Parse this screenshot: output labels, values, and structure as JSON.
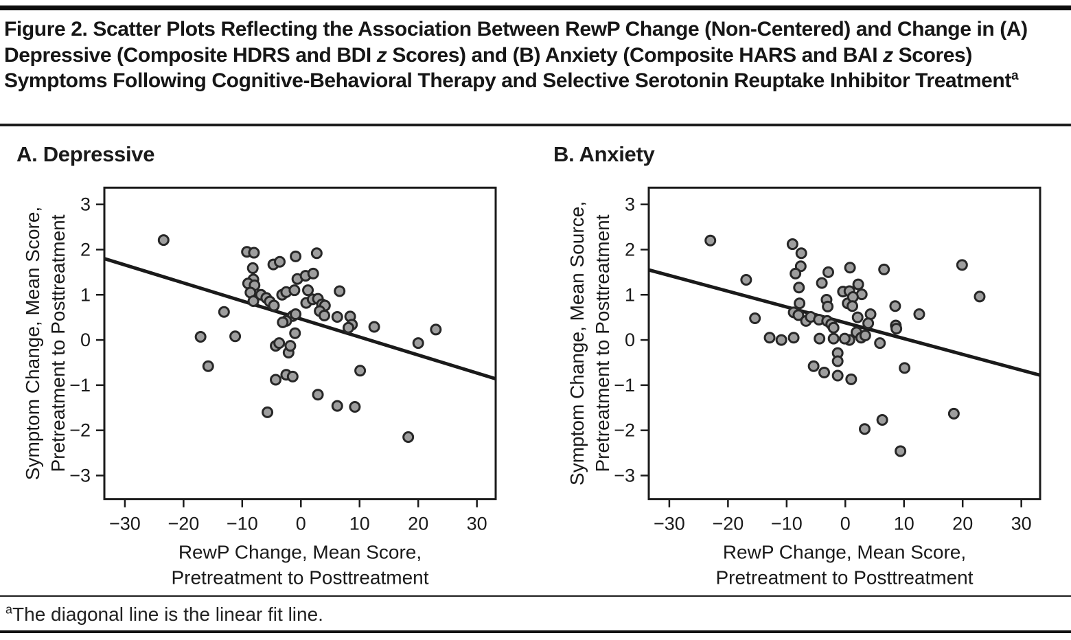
{
  "header": {
    "title_segments": [
      {
        "t": "Figure 2. Scatter Plots Reflecting the Association Between RewP Change (Non-Centered) and Change in (A) Depressive (Composite HDRS and BDI "
      },
      {
        "t": "z",
        "i": true
      },
      {
        "t": " Scores) and (B) Anxiety (Composite HARS and BAI "
      },
      {
        "t": "z",
        "i": true
      },
      {
        "t": " Scores) Symptoms Following Cognitive-Behavioral Therapy and Selective Serotonin Reuptake Inhibitor Treatment"
      },
      {
        "t": "a",
        "sup": true
      }
    ]
  },
  "footnote": {
    "segments": [
      {
        "t": "a",
        "sup": true
      },
      {
        "t": "The diagonal line is the linear fit line."
      }
    ]
  },
  "chart_data": [
    {
      "type": "scatter",
      "panel_label": "A. Depressive",
      "xlabel_lines": [
        "RewP Change, Mean Score,",
        "Pretreatment to Posttreatment"
      ],
      "ylabel_lines": [
        "Symptom Change, Mean Score,",
        "Pretreatment to Posttreatment"
      ],
      "xlim": [
        -33.5,
        33.2
      ],
      "ylim": [
        -3.52,
        3.37
      ],
      "xticks": [
        -30,
        -20,
        -10,
        0,
        10,
        20,
        30
      ],
      "yticks": [
        3,
        2,
        1,
        0,
        -1,
        -2,
        -3
      ],
      "grid": false,
      "legend": "none",
      "fit_line": {
        "x1": -33.5,
        "y1": 1.8,
        "x2": 33.2,
        "y2": -0.86
      },
      "colors": {
        "marker_fill": "#9e9e9e",
        "marker_stroke": "#272727",
        "line": "#1a1a1a",
        "axis": "#1a1a1a"
      },
      "points": [
        [
          -23.4,
          2.21
        ],
        [
          -9.2,
          1.95
        ],
        [
          -8.0,
          1.93
        ],
        [
          -8.2,
          1.59
        ],
        [
          -4.7,
          1.67
        ],
        [
          -3.6,
          1.73
        ],
        [
          -0.9,
          1.85
        ],
        [
          2.7,
          1.92
        ],
        [
          -0.6,
          1.35
        ],
        [
          0.8,
          1.42
        ],
        [
          2.1,
          1.47
        ],
        [
          -8.1,
          1.34
        ],
        [
          -9.0,
          1.25
        ],
        [
          -7.9,
          1.21
        ],
        [
          -8.6,
          1.05
        ],
        [
          -8.1,
          0.86
        ],
        [
          -6.8,
          1.0
        ],
        [
          -5.9,
          0.93
        ],
        [
          -5.3,
          0.85
        ],
        [
          -4.6,
          0.76
        ],
        [
          -3.2,
          1.0
        ],
        [
          -2.5,
          1.06
        ],
        [
          -1.1,
          1.1
        ],
        [
          1.2,
          1.1
        ],
        [
          6.6,
          1.08
        ],
        [
          0.9,
          0.82
        ],
        [
          2.0,
          0.9
        ],
        [
          2.9,
          0.91
        ],
        [
          3.6,
          0.79
        ],
        [
          4.1,
          0.76
        ],
        [
          3.2,
          0.64
        ],
        [
          4.0,
          0.54
        ],
        [
          6.2,
          0.51
        ],
        [
          8.4,
          0.52
        ],
        [
          8.7,
          0.34
        ],
        [
          8.1,
          0.27
        ],
        [
          12.5,
          0.29
        ],
        [
          23.0,
          0.23
        ],
        [
          20.0,
          -0.07
        ],
        [
          -13.1,
          0.62
        ],
        [
          -17.1,
          0.07
        ],
        [
          -11.2,
          0.08
        ],
        [
          -15.8,
          -0.58
        ],
        [
          -4.3,
          -0.13
        ],
        [
          -3.7,
          -0.07
        ],
        [
          -2.1,
          -0.28
        ],
        [
          -1.8,
          -0.13
        ],
        [
          -1.0,
          0.15
        ],
        [
          -1.4,
          0.53
        ],
        [
          -0.9,
          0.57
        ],
        [
          -2.5,
          0.42
        ],
        [
          -3.1,
          0.39
        ],
        [
          -4.3,
          -0.88
        ],
        [
          -2.5,
          -0.77
        ],
        [
          -1.4,
          -0.81
        ],
        [
          -5.7,
          -1.6
        ],
        [
          2.9,
          -1.21
        ],
        [
          6.2,
          -1.46
        ],
        [
          9.2,
          -1.48
        ],
        [
          10.1,
          -0.68
        ],
        [
          18.3,
          -2.15
        ]
      ]
    },
    {
      "type": "scatter",
      "panel_label": "B. Anxiety",
      "xlabel_lines": [
        "RewP Change, Mean Score,",
        "Pretreatment to Posttreatment"
      ],
      "ylabel_lines": [
        "Symptom Change, Mean Source,",
        "Pretreatment to Posttreatment"
      ],
      "xlim": [
        -33.5,
        33.2
      ],
      "ylim": [
        -3.52,
        3.37
      ],
      "xticks": [
        -30,
        -20,
        -10,
        0,
        10,
        20,
        30
      ],
      "yticks": [
        3,
        2,
        1,
        0,
        -1,
        -2,
        -3
      ],
      "grid": false,
      "legend": "none",
      "fit_line": {
        "x1": -33.5,
        "y1": 1.55,
        "x2": 33.2,
        "y2": -0.78
      },
      "colors": {
        "marker_fill": "#9e9e9e",
        "marker_stroke": "#272727",
        "line": "#1a1a1a",
        "axis": "#1a1a1a"
      },
      "points": [
        [
          -23.0,
          2.2
        ],
        [
          -9.0,
          2.12
        ],
        [
          -7.5,
          1.92
        ],
        [
          -7.6,
          1.63
        ],
        [
          -8.5,
          1.47
        ],
        [
          -7.9,
          1.16
        ],
        [
          -16.9,
          1.33
        ],
        [
          -2.9,
          1.5
        ],
        [
          -4.0,
          1.26
        ],
        [
          0.8,
          1.6
        ],
        [
          19.9,
          1.66
        ],
        [
          22.9,
          0.96
        ],
        [
          6.6,
          1.56
        ],
        [
          -7.8,
          0.81
        ],
        [
          -8.8,
          0.61
        ],
        [
          -8.0,
          0.55
        ],
        [
          -15.4,
          0.48
        ],
        [
          -6.7,
          0.42
        ],
        [
          -5.9,
          0.51
        ],
        [
          -4.5,
          0.45
        ],
        [
          -3.1,
          0.42
        ],
        [
          -2.4,
          0.35
        ],
        [
          -2.0,
          0.27
        ],
        [
          -3.2,
          0.89
        ],
        [
          -3.0,
          0.74
        ],
        [
          -0.4,
          1.07
        ],
        [
          0.4,
          0.81
        ],
        [
          2.2,
          1.23
        ],
        [
          0.7,
          1.08
        ],
        [
          2.8,
          1.01
        ],
        [
          1.3,
          0.95
        ],
        [
          1.2,
          0.75
        ],
        [
          2.1,
          0.5
        ],
        [
          4.3,
          0.57
        ],
        [
          3.9,
          0.37
        ],
        [
          8.5,
          0.75
        ],
        [
          12.6,
          0.57
        ],
        [
          8.6,
          0.32
        ],
        [
          8.7,
          0.25
        ],
        [
          1.9,
          0.17
        ],
        [
          2.7,
          0.05
        ],
        [
          3.4,
          0.1
        ],
        [
          5.9,
          -0.07
        ],
        [
          0.7,
          0.0
        ],
        [
          -12.9,
          0.05
        ],
        [
          -10.9,
          0.0
        ],
        [
          -8.8,
          0.05
        ],
        [
          -4.4,
          0.03
        ],
        [
          -2.0,
          0.03
        ],
        [
          -0.1,
          0.03
        ],
        [
          -1.3,
          -0.29
        ],
        [
          -1.3,
          -0.47
        ],
        [
          -5.4,
          -0.58
        ],
        [
          -3.6,
          -0.72
        ],
        [
          -1.3,
          -0.79
        ],
        [
          1.0,
          -0.87
        ],
        [
          10.1,
          -0.62
        ],
        [
          18.5,
          -1.63
        ],
        [
          6.3,
          -1.77
        ],
        [
          3.3,
          -1.97
        ],
        [
          9.4,
          -2.46
        ]
      ]
    }
  ]
}
